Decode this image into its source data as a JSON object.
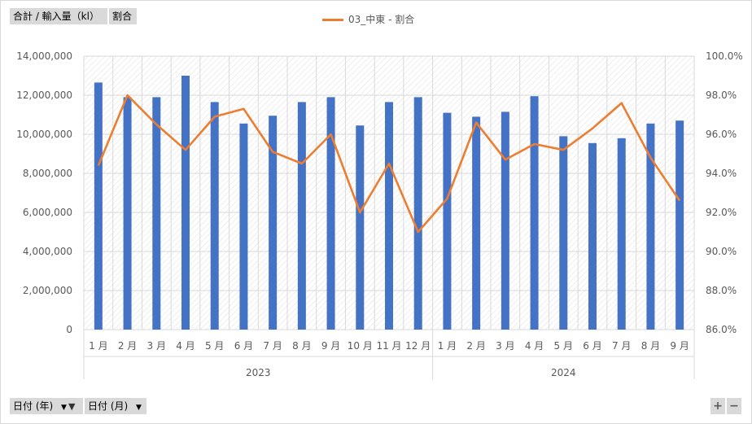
{
  "field_buttons": {
    "values_field": "合計 / 輸入量（kl）",
    "ratio_field": "割合",
    "axis_year": "日付 (年)",
    "axis_month": "日付 (月)"
  },
  "zoom": {
    "plus": "+",
    "minus": "−"
  },
  "colors": {
    "bar": "#4472C4",
    "line": "#ED7D31",
    "grid": "#d9d9d9",
    "text": "#595959"
  },
  "chart_data": {
    "type": "bar",
    "title": "",
    "legend": {
      "position": "top",
      "entries": [
        "03_中東 - 割合"
      ]
    },
    "groups": [
      {
        "label": "2023",
        "count": 12
      },
      {
        "label": "2024",
        "count": 9
      }
    ],
    "categories": [
      "1 月",
      "2 月",
      "3 月",
      "4 月",
      "5 月",
      "6 月",
      "7 月",
      "8 月",
      "9 月",
      "10 月",
      "11 月",
      "12 月",
      "1 月",
      "2 月",
      "3 月",
      "4 月",
      "5 月",
      "6 月",
      "7 月",
      "8 月",
      "9 月"
    ],
    "left_axis": {
      "ylim": [
        0,
        14000000
      ],
      "ticks": [
        "0",
        "2,000,000",
        "4,000,000",
        "6,000,000",
        "8,000,000",
        "10,000,000",
        "12,000,000",
        "14,000,000"
      ]
    },
    "right_axis": {
      "ylim": [
        86,
        100
      ],
      "ticks": [
        "86.0%",
        "88.0%",
        "90.0%",
        "92.0%",
        "94.0%",
        "96.0%",
        "98.0%",
        "100.0%"
      ]
    },
    "series": [
      {
        "kind": "bar",
        "axis": "left",
        "values": [
          12650000,
          11900000,
          11900000,
          13000000,
          11650000,
          10550000,
          10950000,
          11650000,
          11900000,
          10450000,
          11650000,
          11900000,
          11100000,
          10900000,
          11150000,
          11950000,
          9900000,
          9550000,
          9800000,
          10550000,
          10700000
        ]
      },
      {
        "kind": "line",
        "axis": "right",
        "name": "03_中東 - 割合",
        "values": [
          94.4,
          98.0,
          96.5,
          95.2,
          96.9,
          97.3,
          95.1,
          94.5,
          96.0,
          92.0,
          94.5,
          91.0,
          92.7,
          96.6,
          94.7,
          95.5,
          95.2,
          96.3,
          97.6,
          94.8,
          92.6
        ]
      }
    ],
    "grid": true
  }
}
